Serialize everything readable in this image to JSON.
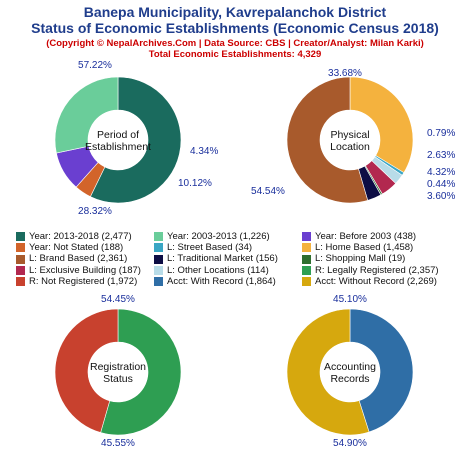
{
  "header": {
    "title_line1": "Banepa Municipality, Kavrepalanchok District",
    "title_line2": "Status of Economic Establishments (Economic Census 2018)",
    "copyright": "(Copyright © NepalArchives.Com | Data Source: CBS | Creator/Analyst: Milan Karki)",
    "total": "Total Economic Establishments: 4,329"
  },
  "colors": {
    "year_2013_2018": "#1a6b5e",
    "year_2003_2013": "#6acd9a",
    "year_before_2003": "#6a3fd0",
    "year_not_stated": "#d2642a",
    "street_based": "#3aa6c4",
    "home_based": "#f4b23e",
    "brand_based": "#a85a2c",
    "traditional_market": "#0d0d44",
    "shopping_mall": "#2e6e2e",
    "exclusive_building": "#b2284f",
    "other_locations": "#b8dce8",
    "legally_registered": "#2e9e52",
    "not_registered": "#c8412e",
    "with_record": "#2f6ea6",
    "without_record": "#d6a80e",
    "label_text": "#1a2f9c"
  },
  "legend": [
    {
      "label": "Year: 2013-2018 (2,477)",
      "color": "#1a6b5e"
    },
    {
      "label": "Year: 2003-2013 (1,226)",
      "color": "#6acd9a"
    },
    {
      "label": "Year: Before 2003 (438)",
      "color": "#6a3fd0"
    },
    {
      "label": "Year: Not Stated (188)",
      "color": "#d2642a"
    },
    {
      "label": "L: Street Based (34)",
      "color": "#3aa6c4"
    },
    {
      "label": "L: Home Based (1,458)",
      "color": "#f4b23e"
    },
    {
      "label": "L: Brand Based (2,361)",
      "color": "#a85a2c"
    },
    {
      "label": "L: Traditional Market (156)",
      "color": "#0d0d44"
    },
    {
      "label": "L: Shopping Mall (19)",
      "color": "#2e6e2e"
    },
    {
      "label": "L: Exclusive Building (187)",
      "color": "#b2284f"
    },
    {
      "label": "L: Other Locations (114)",
      "color": "#b8dce8"
    },
    {
      "label": "R: Legally Registered (2,357)",
      "color": "#2e9e52"
    },
    {
      "label": "R: Not Registered (1,972)",
      "color": "#c8412e"
    },
    {
      "label": "Acct: With Record (1,864)",
      "color": "#2f6ea6"
    },
    {
      "label": "Acct: Without Record (2,269)",
      "color": "#d6a80e"
    }
  ],
  "chart_data": [
    {
      "type": "pie",
      "title": "Period of Establishment",
      "title_lines": [
        "Period of",
        "Establishment"
      ],
      "slices": [
        {
          "name": "Year: 2013-2018",
          "value": 2477,
          "label": "57.22%",
          "color": "#1a6b5e"
        },
        {
          "name": "Year: Not Stated",
          "value": 188,
          "label": "4.34%",
          "color": "#d2642a"
        },
        {
          "name": "Year: Before 2003",
          "value": 438,
          "label": "10.12%",
          "color": "#6a3fd0"
        },
        {
          "name": "Year: 2003-2013",
          "value": 1226,
          "label": "28.32%",
          "color": "#6acd9a"
        }
      ]
    },
    {
      "type": "pie",
      "title": "Physical Location",
      "title_lines": [
        "Physical",
        "Location"
      ],
      "slices": [
        {
          "name": "L: Home Based",
          "value": 1458,
          "label": "33.68%",
          "color": "#f4b23e"
        },
        {
          "name": "L: Street Based",
          "value": 34,
          "label": "0.79%",
          "color": "#3aa6c4"
        },
        {
          "name": "L: Other Locations",
          "value": 114,
          "label": "2.63%",
          "color": "#b8dce8"
        },
        {
          "name": "L: Exclusive Building",
          "value": 187,
          "label": "4.32%",
          "color": "#b2284f"
        },
        {
          "name": "L: Shopping Mall",
          "value": 19,
          "label": "0.44%",
          "color": "#2e6e2e"
        },
        {
          "name": "L: Traditional Market",
          "value": 156,
          "label": "3.60%",
          "color": "#0d0d44"
        },
        {
          "name": "L: Brand Based",
          "value": 2361,
          "label": "54.54%",
          "color": "#a85a2c"
        }
      ]
    },
    {
      "type": "pie",
      "title": "Registration Status",
      "title_lines": [
        "Registration",
        "Status"
      ],
      "slices": [
        {
          "name": "R: Legally Registered",
          "value": 2357,
          "label": "54.45%",
          "color": "#2e9e52"
        },
        {
          "name": "R: Not Registered",
          "value": 1972,
          "label": "45.55%",
          "color": "#c8412e"
        }
      ]
    },
    {
      "type": "pie",
      "title": "Accounting Records",
      "title_lines": [
        "Accounting",
        "Records"
      ],
      "slices": [
        {
          "name": "Acct: With Record",
          "value": 1864,
          "label": "45.10%",
          "color": "#2f6ea6"
        },
        {
          "name": "Acct: Without Record",
          "value": 2269,
          "label": "54.90%",
          "color": "#d6a80e"
        }
      ]
    }
  ]
}
